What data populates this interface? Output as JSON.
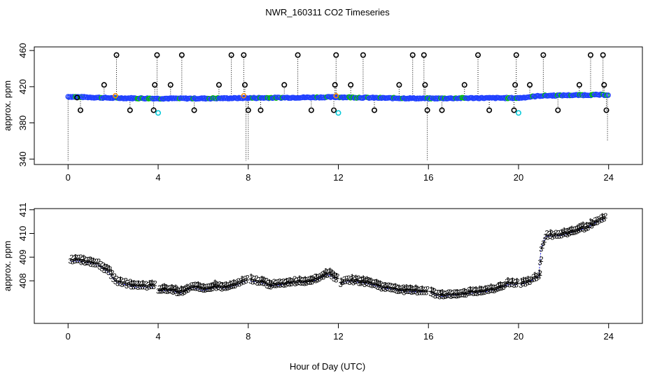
{
  "title": "NWR_160311  CO2 Timeseries",
  "xlabel": "Hour of Day (UTC)",
  "colors": {
    "series_1": "#e00000",
    "series_2": "#00c000",
    "series_3": "#0000e0",
    "baseline": "#2040ff",
    "spike_marker": "#000000",
    "cyan_marker": "#00c8d8",
    "orange_marker": "#ff8c00"
  },
  "chart_data": [
    {
      "type": "scatter",
      "panel": "top",
      "ylabel": "approx. ppm",
      "xlim": [
        -1.5,
        25.5
      ],
      "ylim": [
        334,
        464
      ],
      "xticks": [
        0,
        4,
        8,
        12,
        16,
        20,
        24
      ],
      "xtick_labels": [
        "0",
        "4",
        "8",
        "12",
        "16",
        "20",
        "24"
      ],
      "yticks": [
        340,
        380,
        420,
        460
      ],
      "ytick_labels": [
        "340",
        "380",
        "420",
        "460"
      ],
      "baseline": {
        "x": [
          0,
          2,
          4,
          6,
          8,
          10,
          12,
          14,
          16,
          18,
          20,
          21,
          22,
          23.5,
          24
        ],
        "y": [
          409,
          407.5,
          407,
          407,
          407.5,
          408,
          408.5,
          407.5,
          407,
          407.5,
          407.5,
          410,
          410.5,
          411,
          411
        ]
      },
      "high_spikes": {
        "x": [
          0.4,
          1.6,
          2.15,
          3.85,
          3.95,
          4.55,
          5.05,
          6.7,
          7.25,
          7.8,
          7.85,
          9.6,
          10.2,
          11.85,
          11.9,
          12.55,
          13.1,
          14.7,
          15.3,
          15.8,
          15.85,
          17.6,
          18.2,
          19.85,
          19.9,
          20.5,
          21.1,
          22.7,
          23.2,
          23.75,
          23.8
        ],
        "y": [
          408,
          422,
          455,
          422,
          455,
          422,
          455,
          422,
          455,
          455,
          422,
          422,
          455,
          422,
          455,
          422,
          455,
          422,
          455,
          455,
          422,
          422,
          455,
          422,
          455,
          422,
          455,
          422,
          455,
          455,
          422
        ]
      },
      "low_spikes": {
        "x": [
          0.55,
          2.75,
          3.8,
          5.6,
          8.0,
          8.55,
          10.8,
          11.8,
          13.6,
          15.95,
          16.6,
          18.7,
          19.8,
          21.75,
          23.9
        ],
        "y": [
          394,
          394,
          394,
          394,
          394,
          394,
          394,
          394,
          394,
          394,
          394,
          394,
          394,
          394,
          394
        ]
      },
      "drop_lines": {
        "x": [
          0,
          7.9,
          8.0,
          15.95,
          23.95
        ],
        "y_from": [
          408,
          408,
          408,
          407,
          408
        ],
        "y_to": [
          338,
          338,
          339,
          339,
          360
        ]
      },
      "cyan_points": {
        "x": [
          4.0,
          12.0,
          20.0
        ],
        "y": [
          391,
          391,
          391
        ]
      },
      "orange_points": {
        "x": [
          2.1,
          7.8,
          11.9
        ],
        "y": [
          410,
          410,
          410
        ]
      }
    },
    {
      "type": "scatter",
      "panel": "bottom",
      "ylabel": "approx. ppm",
      "xlim": [
        -1.5,
        25.5
      ],
      "ylim": [
        406.2,
        411.05
      ],
      "xticks": [
        0,
        4,
        8,
        12,
        16,
        20,
        24
      ],
      "xtick_labels": [
        "0",
        "4",
        "8",
        "12",
        "16",
        "20",
        "24"
      ],
      "yticks": [
        408,
        409,
        410,
        411
      ],
      "ytick_labels": [
        "408",
        "409",
        "410",
        "411"
      ],
      "series": [
        {
          "name": "1",
          "symbol": "1"
        },
        {
          "name": "2",
          "symbol": "2"
        },
        {
          "name": "3",
          "symbol": "3"
        }
      ],
      "segments": [
        {
          "x": [
            0.1,
            0.5,
            1.0,
            1.4,
            1.8,
            2.2,
            2.6,
            3.0,
            3.4,
            3.8
          ],
          "y": [
            408.95,
            408.95,
            408.85,
            408.75,
            408.45,
            408.0,
            407.95,
            407.85,
            407.85,
            407.85
          ]
        },
        {
          "x": [
            4.0,
            4.5,
            5.0,
            5.5,
            6.0,
            6.5,
            7.0,
            7.5,
            7.9
          ],
          "y": [
            407.7,
            407.7,
            407.6,
            407.85,
            407.7,
            407.85,
            407.8,
            407.95,
            408.1
          ]
        },
        {
          "x": [
            8.1,
            8.5,
            9.0,
            9.5,
            10.0,
            10.5,
            11.0,
            11.5,
            11.9
          ],
          "y": [
            408.1,
            408.05,
            407.9,
            407.95,
            408.05,
            408.05,
            408.15,
            408.4,
            408.2
          ]
        },
        {
          "x": [
            12.1,
            12.5,
            13.0,
            13.5,
            14.0,
            14.5,
            15.0,
            15.5,
            15.9
          ],
          "y": [
            408.0,
            408.1,
            408.05,
            407.95,
            407.8,
            407.75,
            407.65,
            407.65,
            407.65
          ]
        },
        {
          "x": [
            16.1,
            16.5,
            17.0,
            17.5,
            18.0,
            18.5,
            19.0,
            19.5,
            19.9
          ],
          "y": [
            407.6,
            407.45,
            407.5,
            407.55,
            407.6,
            407.65,
            407.75,
            407.95,
            407.95
          ]
        },
        {
          "x": [
            20.1,
            20.5,
            20.9,
            21.0,
            21.2,
            21.6,
            22.0,
            22.5,
            23.0,
            23.5,
            23.8
          ],
          "y": [
            407.95,
            408.1,
            408.3,
            409.5,
            410.0,
            410.0,
            410.05,
            410.2,
            410.35,
            410.6,
            410.7
          ]
        }
      ]
    }
  ]
}
